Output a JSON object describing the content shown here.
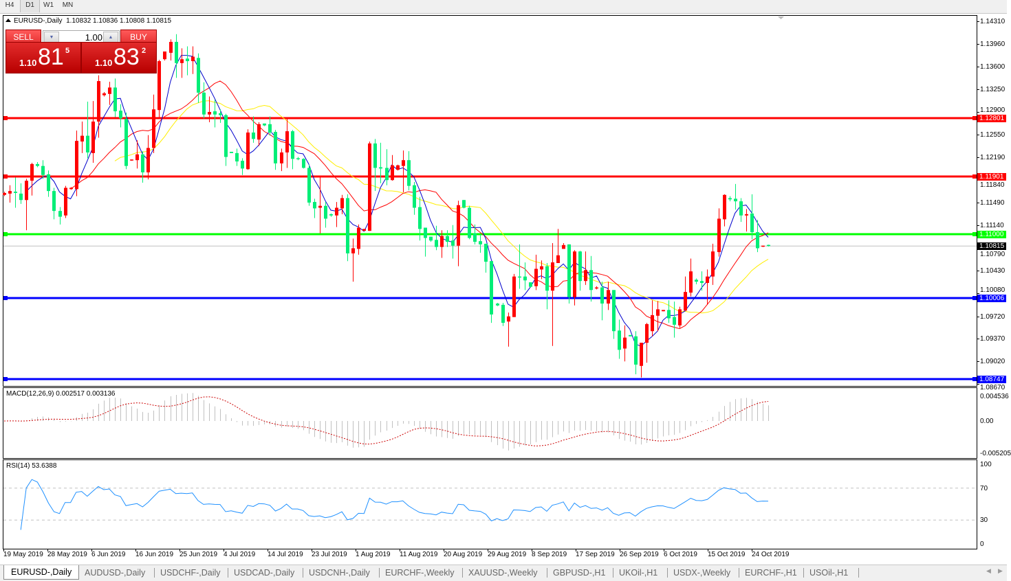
{
  "timeframes": [
    "H4",
    "D1",
    "W1",
    "MN"
  ],
  "selected_timeframe": "D1",
  "chart": {
    "symbol_title": "EURUSD-,Daily",
    "ohlc_text": "1.10832 1.10836 1.10808 1.10815"
  },
  "trade_panel": {
    "sell_label": "SELL",
    "buy_label": "BUY",
    "lot_value": "1.00",
    "sell_price": {
      "prefix": "1.10",
      "big": "81",
      "sup": "5"
    },
    "buy_price": {
      "prefix": "1.10",
      "big": "83",
      "sup": "2"
    }
  },
  "price_axis": [
    "1.14310",
    "1.13960",
    "1.13600",
    "1.13250",
    "1.12900",
    "1.12550",
    "1.12190",
    "1.11840",
    "1.11490",
    "1.11140",
    "1.10790",
    "1.10430",
    "1.10080",
    "1.09720",
    "1.09370",
    "1.09020",
    "1.08670"
  ],
  "horizontal_lines": [
    {
      "price": "1.12801",
      "color": "#ff0000"
    },
    {
      "price": "1.11901",
      "color": "#ff0000"
    },
    {
      "price": "1.11000",
      "color": "#00ff00"
    },
    {
      "price": "1.10006",
      "color": "#0000ff"
    },
    {
      "price": "1.08747",
      "color": "#0000ff"
    }
  ],
  "current_price": "1.10815",
  "colors": {
    "bull": "#ff0000",
    "bear": "#00ee77",
    "ma_fast": "#0000cc",
    "ma_mid": "#ff0000",
    "ma_slow": "#ffee00",
    "macd_hist": "#c0c0c0",
    "macd_signal": "#cc0000",
    "rsi": "#1e90ff"
  },
  "macd": {
    "label": "MACD(12,26,9) 0.002517 0.003136",
    "axis": [
      "0.004536",
      "0.00",
      "-0.005205"
    ]
  },
  "rsi": {
    "label": "RSI(14) 53.6388",
    "axis": [
      "100",
      "70",
      "30",
      "0"
    ]
  },
  "date_axis": [
    "19 May 2019",
    "28 May 2019",
    "6 Jun 2019",
    "16 Jun 2019",
    "25 Jun 2019",
    "4 Jul 2019",
    "14 Jul 2019",
    "23 Jul 2019",
    "1 Aug 2019",
    "11 Aug 2019",
    "20 Aug 2019",
    "29 Aug 2019",
    "8 Sep 2019",
    "17 Sep 2019",
    "26 Sep 2019",
    "6 Oct 2019",
    "15 Oct 2019",
    "24 Oct 2019"
  ],
  "tabs": [
    "EURUSD-,Daily",
    "AUDUSD-,Daily",
    "USDCHF-,Daily",
    "USDCAD-,Daily",
    "USDCNH-,Daily",
    "EURCHF-,Weekly",
    "XAUUSD-,Weekly",
    "GBPUSD-,H1",
    "UKOil-,H1",
    "USDX-,Weekly",
    "EURCHF-,H1",
    "USOil-,H1"
  ],
  "active_tab": "EURUSD-,Daily",
  "chart_data": {
    "type": "candlestick",
    "fields": [
      "open",
      "high",
      "low",
      "close"
    ],
    "price_range": [
      1.0867,
      1.1431
    ],
    "candles": [
      [
        1.1161,
        1.1166,
        1.1159,
        1.1164
      ],
      [
        1.1163,
        1.1176,
        1.1149,
        1.1167
      ],
      [
        1.1166,
        1.1188,
        1.1141,
        1.1164
      ],
      [
        1.1163,
        1.1179,
        1.1147,
        1.1153
      ],
      [
        1.1153,
        1.1186,
        1.1106,
        1.1183
      ],
      [
        1.1183,
        1.1211,
        1.116,
        1.1209
      ],
      [
        1.1209,
        1.1212,
        1.1204,
        1.1206
      ],
      [
        1.1206,
        1.1215,
        1.1186,
        1.1192
      ],
      [
        1.1193,
        1.1199,
        1.1158,
        1.1167
      ],
      [
        1.1167,
        1.1172,
        1.1123,
        1.1136
      ],
      [
        1.1136,
        1.1142,
        1.1115,
        1.1127
      ],
      [
        1.1129,
        1.1175,
        1.1125,
        1.1172
      ],
      [
        1.117,
        1.1173,
        1.1169,
        1.1172
      ],
      [
        1.117,
        1.1261,
        1.1159,
        1.1245
      ],
      [
        1.1244,
        1.1275,
        1.1226,
        1.1253
      ],
      [
        1.1253,
        1.1306,
        1.1218,
        1.1227
      ],
      [
        1.1226,
        1.1307,
        1.1211,
        1.1275
      ],
      [
        1.1275,
        1.1347,
        1.125,
        1.1338
      ],
      [
        1.1316,
        1.1321,
        1.1314,
        1.1319
      ],
      [
        1.1318,
        1.1337,
        1.1301,
        1.1328
      ],
      [
        1.1328,
        1.1342,
        1.1282,
        1.1291
      ],
      [
        1.1292,
        1.1302,
        1.1266,
        1.128
      ],
      [
        1.1279,
        1.1289,
        1.1201,
        1.1206
      ],
      [
        1.1215,
        1.1216,
        1.1214,
        1.1216
      ],
      [
        1.1215,
        1.1246,
        1.1202,
        1.1224
      ],
      [
        1.1224,
        1.1229,
        1.118,
        1.1196
      ],
      [
        1.1196,
        1.1254,
        1.1185,
        1.1234
      ],
      [
        1.1234,
        1.1317,
        1.1226,
        1.1294
      ],
      [
        1.1293,
        1.1371,
        1.128,
        1.1369
      ],
      [
        1.1372,
        1.1384,
        1.137,
        1.1384
      ],
      [
        1.1382,
        1.1403,
        1.137,
        1.1399
      ],
      [
        1.1399,
        1.1411,
        1.1343,
        1.1366
      ],
      [
        1.1366,
        1.1389,
        1.1343,
        1.1372
      ],
      [
        1.1373,
        1.1392,
        1.1347,
        1.1369
      ],
      [
        1.1369,
        1.1392,
        1.1349,
        1.1376
      ],
      [
        1.1374,
        1.1381,
        1.1304,
        1.132
      ],
      [
        1.132,
        1.1336,
        1.128,
        1.1286
      ],
      [
        1.1286,
        1.1314,
        1.1274,
        1.129
      ],
      [
        1.1291,
        1.1309,
        1.1266,
        1.1286
      ],
      [
        1.1288,
        1.1294,
        1.1273,
        1.1285
      ],
      [
        1.1285,
        1.1287,
        1.1206,
        1.122
      ],
      [
        1.1228,
        1.1228,
        1.1226,
        1.1226
      ],
      [
        1.1226,
        1.1233,
        1.1206,
        1.1213
      ],
      [
        1.1214,
        1.1218,
        1.1192,
        1.1202
      ],
      [
        1.1201,
        1.1263,
        1.12,
        1.1258
      ],
      [
        1.1258,
        1.1283,
        1.1242,
        1.1248
      ],
      [
        1.1247,
        1.1274,
        1.1237,
        1.1271
      ],
      [
        1.1272,
        1.1272,
        1.1268,
        1.1269
      ],
      [
        1.1271,
        1.1283,
        1.1253,
        1.1258
      ],
      [
        1.1259,
        1.1262,
        1.12,
        1.121
      ],
      [
        1.121,
        1.1233,
        1.1198,
        1.1227
      ],
      [
        1.1227,
        1.1279,
        1.1203,
        1.126
      ],
      [
        1.126,
        1.1262,
        1.1201,
        1.1217
      ],
      [
        1.1218,
        1.122,
        1.1215,
        1.1217
      ],
      [
        1.1217,
        1.1218,
        1.1202,
        1.1203
      ],
      [
        1.1203,
        1.1208,
        1.1144,
        1.1149
      ],
      [
        1.115,
        1.1155,
        1.1125,
        1.114
      ],
      [
        1.1141,
        1.119,
        1.1101,
        1.1144
      ],
      [
        1.1144,
        1.115,
        1.111,
        1.1124
      ],
      [
        1.1131,
        1.1132,
        1.1127,
        1.1129
      ],
      [
        1.1129,
        1.115,
        1.1111,
        1.1141
      ],
      [
        1.114,
        1.1161,
        1.1131,
        1.1156
      ],
      [
        1.1156,
        1.1162,
        1.1058,
        1.107
      ],
      [
        1.107,
        1.1093,
        1.1026,
        1.1078
      ],
      [
        1.1077,
        1.1115,
        1.1068,
        1.111
      ],
      [
        1.1105,
        1.1108,
        1.1105,
        1.1108
      ],
      [
        1.1105,
        1.1244,
        1.1105,
        1.1241
      ],
      [
        1.1241,
        1.1248,
        1.1167,
        1.1203
      ],
      [
        1.1204,
        1.1242,
        1.1179,
        1.1202
      ],
      [
        1.1203,
        1.1232,
        1.1176,
        1.1184
      ],
      [
        1.1184,
        1.1223,
        1.1183,
        1.1207
      ],
      [
        1.12,
        1.1208,
        1.1199,
        1.1207
      ],
      [
        1.1206,
        1.123,
        1.1165,
        1.1215
      ],
      [
        1.1215,
        1.1229,
        1.1168,
        1.1175
      ],
      [
        1.1176,
        1.1181,
        1.113,
        1.1141
      ],
      [
        1.1142,
        1.1158,
        1.109,
        1.1108
      ],
      [
        1.111,
        1.111,
        1.1065,
        1.1094
      ],
      [
        1.1096,
        1.1096,
        1.1088,
        1.109
      ],
      [
        1.1091,
        1.1113,
        1.1075,
        1.108
      ],
      [
        1.108,
        1.1106,
        1.1063,
        1.1097
      ],
      [
        1.1097,
        1.1106,
        1.108,
        1.1088
      ],
      [
        1.109,
        1.1114,
        1.1062,
        1.1082
      ],
      [
        1.1082,
        1.1152,
        1.105,
        1.1145
      ],
      [
        1.1153,
        1.1153,
        1.114,
        1.1141
      ],
      [
        1.1141,
        1.1144,
        1.1092,
        1.1094
      ],
      [
        1.1101,
        1.1115,
        1.1084,
        1.1088
      ],
      [
        1.1089,
        1.1099,
        1.1071,
        1.1084
      ],
      [
        1.1085,
        1.1085,
        1.104,
        1.1057
      ],
      [
        1.1058,
        1.1058,
        1.0962,
        1.0975
      ],
      [
        1.0992,
        1.0993,
        1.0988,
        1.0989
      ],
      [
        1.099,
        1.0993,
        1.0957,
        1.0962
      ],
      [
        1.0964,
        1.0978,
        1.0925,
        1.0972
      ],
      [
        1.0971,
        1.1038,
        1.0971,
        1.1034
      ],
      [
        1.1034,
        1.1084,
        1.1015,
        1.1033
      ],
      [
        1.1034,
        1.1056,
        1.1013,
        1.1028
      ],
      [
        1.1025,
        1.1025,
        1.1017,
        1.1018
      ],
      [
        1.1019,
        1.1068,
        1.1013,
        1.1046
      ],
      [
        1.1045,
        1.1059,
        1.103,
        1.105
      ],
      [
        1.105,
        1.1055,
        1.0983,
        1.1012
      ],
      [
        1.1012,
        1.1086,
        1.0926,
        1.1056
      ],
      [
        1.1055,
        1.1108,
        1.1055,
        1.1067
      ],
      [
        1.1077,
        1.1086,
        1.1077,
        1.1083
      ],
      [
        1.1084,
        1.1084,
        1.0992,
        1.1002
      ],
      [
        1.1002,
        1.1075,
        1.0989,
        1.1073
      ],
      [
        1.1073,
        1.1074,
        1.1012,
        1.1027
      ],
      [
        1.1027,
        1.1073,
        1.1021,
        1.1044
      ],
      [
        1.1044,
        1.1066,
        1.0995,
        1.1013
      ],
      [
        1.1016,
        1.1019,
        1.1014,
        1.1017
      ],
      [
        1.1017,
        1.1026,
        1.0966,
        1.0992
      ],
      [
        1.0992,
        1.1026,
        1.0982,
        1.1013
      ],
      [
        1.1013,
        1.1013,
        1.0937,
        1.0949
      ],
      [
        1.095,
        1.0967,
        1.0906,
        1.092
      ],
      [
        1.0922,
        1.0958,
        1.0902,
        1.0939
      ],
      [
        1.0943,
        1.0943,
        1.0941,
        1.0941
      ],
      [
        1.0941,
        1.0949,
        1.0882,
        1.0897
      ],
      [
        1.0895,
        1.0931,
        1.0877,
        1.0931
      ],
      [
        1.0931,
        1.0962,
        1.09,
        1.096
      ],
      [
        1.0949,
        1.0997,
        1.0941,
        1.0974
      ],
      [
        1.0973,
        1.0996,
        1.0949,
        1.0983
      ],
      [
        1.098,
        1.0982,
        1.098,
        1.0982
      ],
      [
        1.0982,
        1.0997,
        1.0962,
        1.0969
      ],
      [
        1.0971,
        1.0995,
        1.0939,
        1.0959
      ],
      [
        1.0958,
        1.0987,
        1.0954,
        1.0983
      ],
      [
        1.0981,
        1.1034,
        1.0981,
        1.101
      ],
      [
        1.1009,
        1.1062,
        1.1003,
        1.1042
      ],
      [
        1.1029,
        1.1031,
        1.1022,
        1.1026
      ],
      [
        1.1027,
        1.1042,
        1.1012,
        1.1024
      ],
      [
        1.1024,
        1.1045,
        1.099,
        1.1034
      ],
      [
        1.1034,
        1.1085,
        1.1021,
        1.1073
      ],
      [
        1.1072,
        1.114,
        1.1065,
        1.1124
      ],
      [
        1.1123,
        1.1162,
        1.1112,
        1.1161
      ],
      [
        1.1156,
        1.1159,
        1.1151,
        1.1154
      ],
      [
        1.1155,
        1.1178,
        1.1138,
        1.1151
      ],
      [
        1.1151,
        1.1156,
        1.1119,
        1.1129
      ],
      [
        1.1129,
        1.1139,
        1.1104,
        1.1131
      ],
      [
        1.1132,
        1.1162,
        1.1092,
        1.1103
      ],
      [
        1.1103,
        1.1122,
        1.1072,
        1.1078
      ],
      [
        1.1081,
        1.1082,
        1.108,
        1.1082
      ],
      [
        1.10832,
        1.10836,
        1.10808,
        1.10815
      ]
    ]
  }
}
